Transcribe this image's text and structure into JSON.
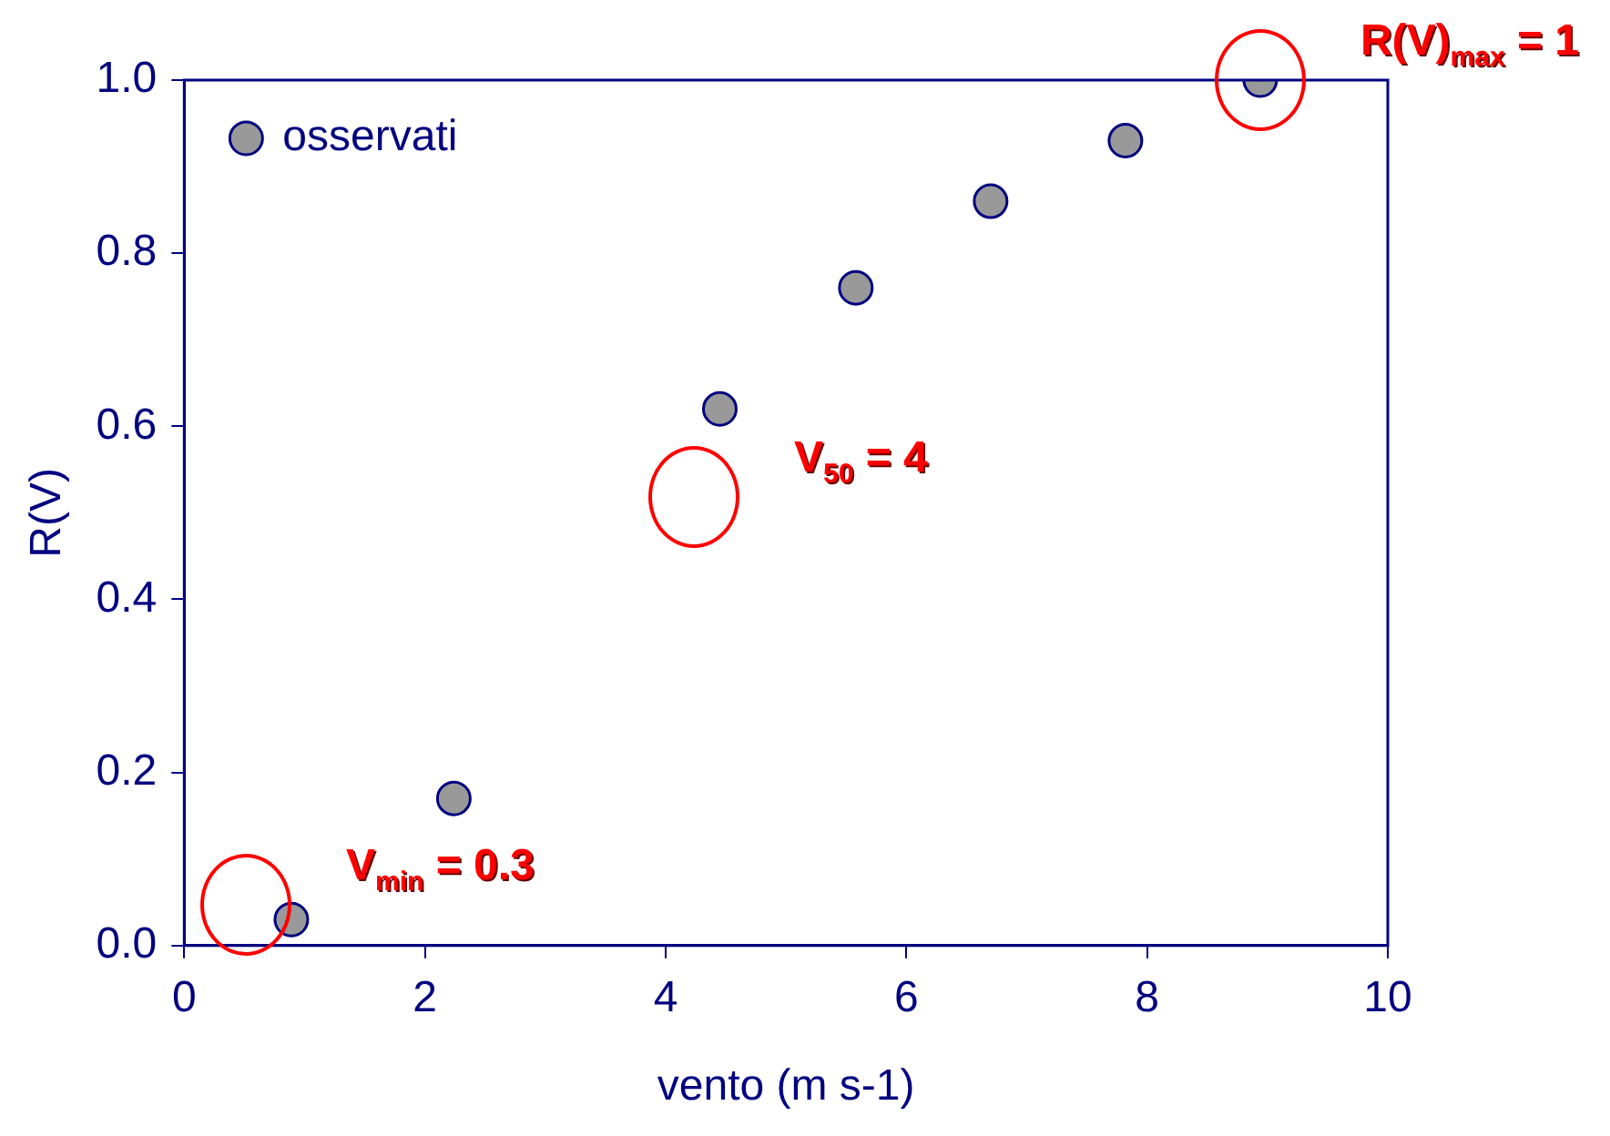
{
  "chart_data": {
    "type": "scatter",
    "xlabel": "vento (m s-1)",
    "ylabel": "R(V)",
    "x": [
      0.89,
      2.24,
      4.45,
      5.58,
      6.7,
      7.82,
      8.94
    ],
    "series": [
      {
        "name": "osservati",
        "color": "#999999",
        "values": [
          0.03,
          0.17,
          0.62,
          0.76,
          0.86,
          0.93,
          1.0
        ]
      }
    ],
    "xlim": [
      0,
      10
    ],
    "xticks": [
      0,
      2,
      4,
      6,
      8,
      10
    ],
    "ylim": [
      0,
      1
    ],
    "yticks": [
      {
        "value": 0,
        "label": "0.0"
      },
      {
        "value": 0.2,
        "label": "0.2"
      },
      {
        "value": 0.4,
        "label": "0.4"
      },
      {
        "value": 0.6,
        "label": "0.6"
      },
      {
        "value": 0.8,
        "label": "0.8"
      },
      {
        "value": 1,
        "label": "1.0"
      }
    ],
    "annotations": [
      "V$_{min}$ = 0.3",
      "V$_{50}$ = 4",
      {
        "text": "R(V)$_{max}$ = 1",
        "x": 8.94,
        "y": 1
      }
    ],
    "grid": false,
    "legend": "top left",
    "marker": "circle"
  }
}
